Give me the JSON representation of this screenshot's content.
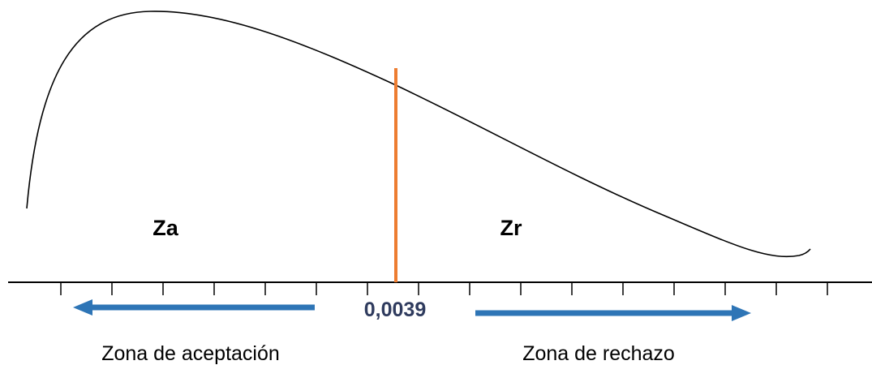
{
  "zones": {
    "acceptance_symbol": "Za",
    "rejection_symbol": "Zr",
    "acceptance_label": "Zona de aceptación",
    "rejection_label": "Zona de rechazo"
  },
  "threshold": {
    "value_label": "0,0039"
  },
  "colors": {
    "curve": "#000000",
    "axis": "#000000",
    "threshold_line": "#ed7d31",
    "arrows": "#2e75b6",
    "threshold_text": "#2f3b5e"
  },
  "icons": {
    "left_arrow": "arrow-left-icon",
    "right_arrow": "arrow-right-icon"
  }
}
